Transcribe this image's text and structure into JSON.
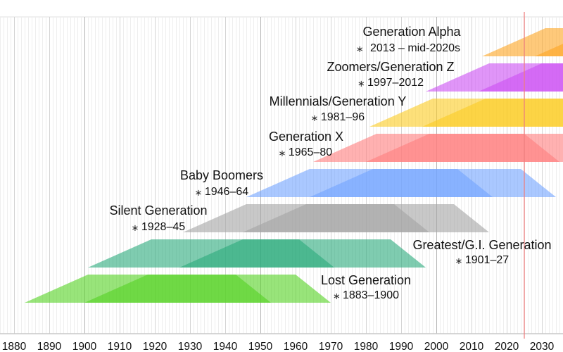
{
  "chart_data": {
    "type": "timeline",
    "x_axis": {
      "range": [
        1876,
        2036
      ],
      "tick_labels": [
        "1880",
        "1890",
        "1900",
        "1910",
        "1920",
        "1930",
        "1940",
        "1950",
        "1960",
        "1970",
        "1980",
        "1990",
        "2000",
        "2010",
        "2020",
        "2030"
      ]
    },
    "grid": true,
    "current_year_marker": {
      "year": 2025,
      "color": "#f08080"
    },
    "generations": [
      {
        "name": "Lost Generation",
        "dates": "1883–1900",
        "start": 1883,
        "end": 1900,
        "color": "#53d221"
      },
      {
        "name": "Greatest/G.I. Generation",
        "dates": "1901–27",
        "start": 1901,
        "end": 1927,
        "color": "#2aaa7b"
      },
      {
        "name": "Silent Generation",
        "dates": "1928–45",
        "start": 1928,
        "end": 1945,
        "color": "#a3a3a3"
      },
      {
        "name": "Baby Boomers",
        "dates": "1946–64",
        "start": 1946,
        "end": 1964,
        "color": "#71a3ff"
      },
      {
        "name": "Generation X",
        "dates": "1965–80",
        "start": 1965,
        "end": 1980,
        "color": "#ff7d7d"
      },
      {
        "name": "Millennials/Generation Y",
        "dates": "1981–96",
        "start": 1981,
        "end": 1996,
        "color": "#fccb21"
      },
      {
        "name": "Zoomers/Generation Z",
        "dates": "1997–2012",
        "start": 1997,
        "end": 2012,
        "color": "#cb4ef3"
      },
      {
        "name": "Generation Alpha",
        "dates": "2013 – mid-2020s",
        "start": 2013,
        "end": 2028,
        "color": "#fda521"
      }
    ]
  }
}
